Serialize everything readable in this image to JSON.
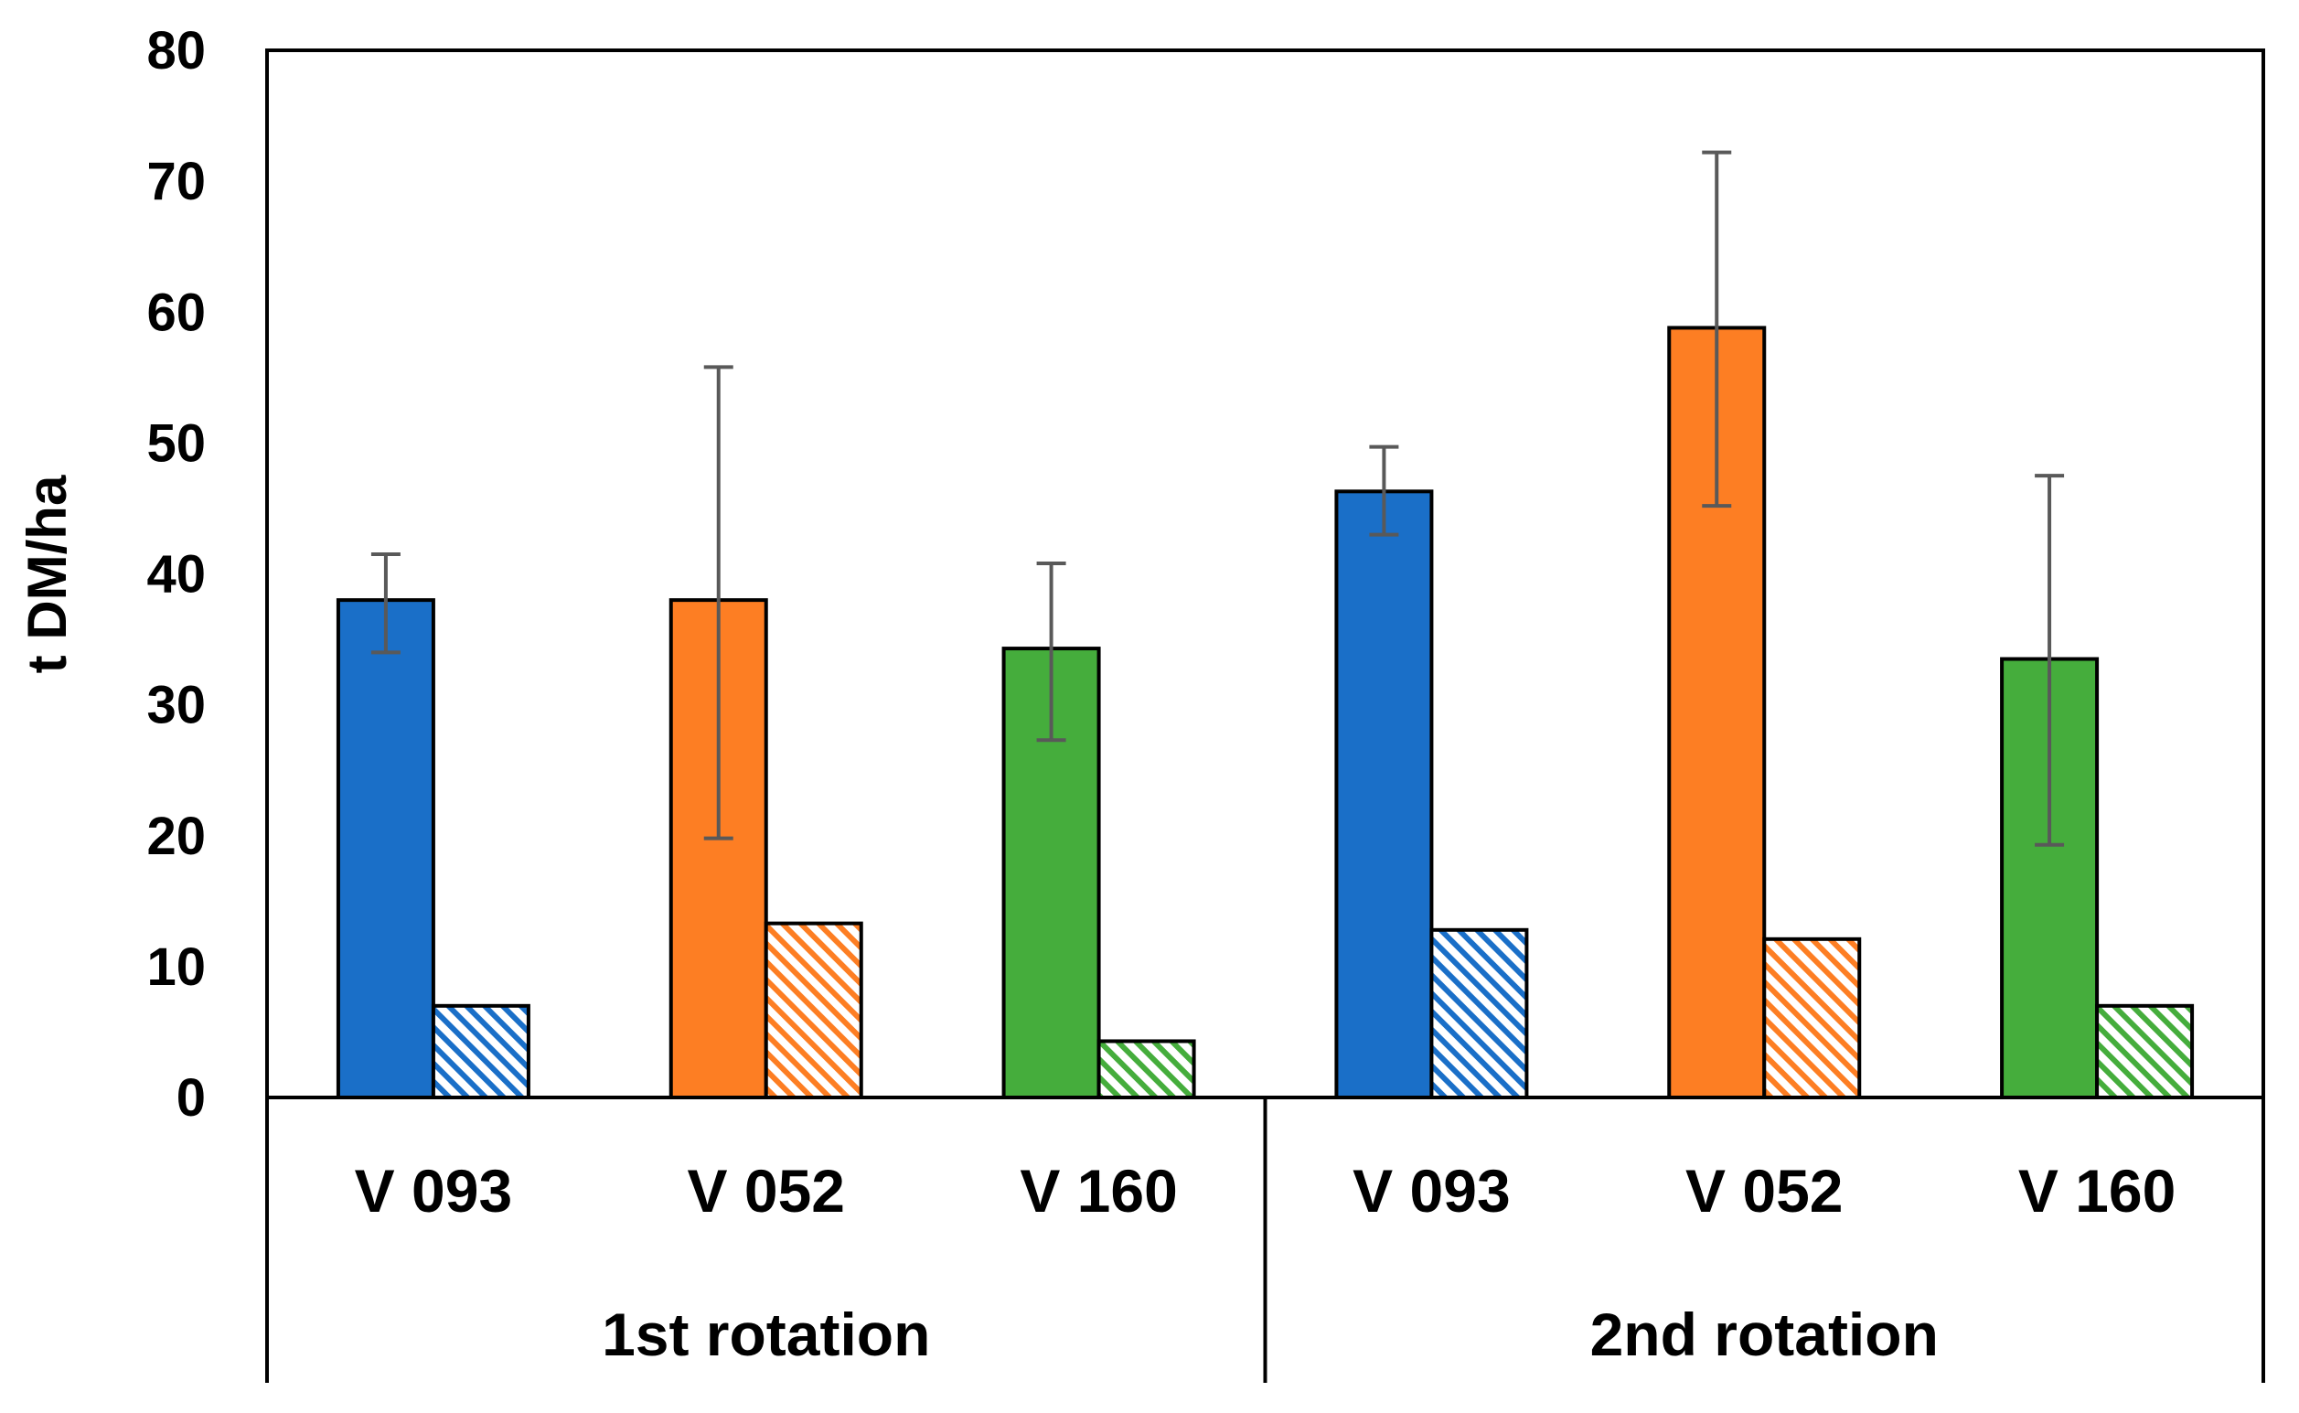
{
  "chart_data": {
    "type": "bar",
    "ylabel": "t DM/ha",
    "ylim": [
      0,
      80
    ],
    "yticks": [
      "0",
      "10",
      "20",
      "30",
      "40",
      "50",
      "60",
      "70",
      "80"
    ],
    "groups": [
      {
        "label": "1st rotation",
        "categories": [
          {
            "label": "V 093",
            "color": "#1a6fc8",
            "solid": 38.0,
            "error_low": 34.0,
            "error_high": 41.5,
            "hatched": 7.0
          },
          {
            "label": "V 052",
            "color": "#fd7e23",
            "solid": 38.0,
            "error_low": 19.8,
            "error_high": 55.8,
            "hatched": 13.3
          },
          {
            "label": "V 160",
            "color": "#45ad3c",
            "solid": 34.3,
            "error_low": 27.3,
            "error_high": 40.8,
            "hatched": 4.3
          }
        ]
      },
      {
        "label": "2nd rotation",
        "categories": [
          {
            "label": "V 093",
            "color": "#1a6fc8",
            "solid": 46.3,
            "error_low": 43.0,
            "error_high": 49.7,
            "hatched": 12.8
          },
          {
            "label": "V 052",
            "color": "#fd7e23",
            "solid": 58.8,
            "error_low": 45.2,
            "error_high": 72.2,
            "hatched": 12.1
          },
          {
            "label": "V 160",
            "color": "#45ad3c",
            "solid": 33.5,
            "error_low": 19.3,
            "error_high": 47.5,
            "hatched": 7.0
          }
        ]
      }
    ],
    "error_bar_color": "#595959",
    "grid": false,
    "legend": "none"
  }
}
